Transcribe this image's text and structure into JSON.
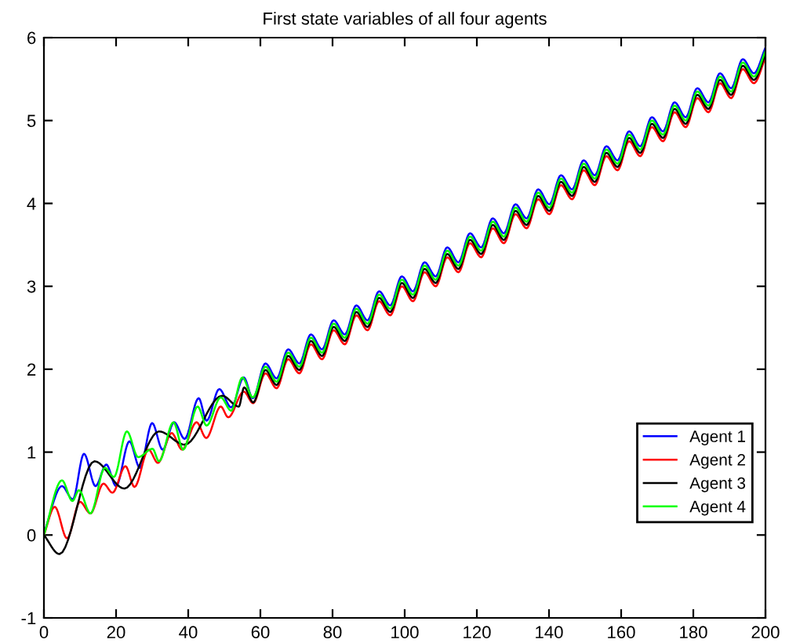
{
  "chart_data": {
    "type": "line",
    "title": "First state variables of all four agents",
    "xlim": [
      0,
      200
    ],
    "ylim": [
      -1,
      6
    ],
    "xticks": [
      0,
      20,
      40,
      60,
      80,
      100,
      120,
      140,
      160,
      180,
      200
    ],
    "yticks": [
      -1,
      0,
      1,
      2,
      3,
      4,
      5,
      6
    ],
    "grid": false,
    "legend": "right",
    "marker": "none",
    "line_style": "solid",
    "series": [
      {
        "name": "Agent 1",
        "color": "#0000ff",
        "x": [
          0,
          5,
          8,
          11.1,
          14.3,
          17.3,
          20,
          23.7,
          26.6,
          30,
          32.9,
          36.1,
          39,
          42.9,
          45.1,
          48.6,
          51.9,
          55.4,
          57.9,
          61.4,
          64.5,
          67.7,
          70.8,
          74.0,
          77.1,
          80.3,
          83.4,
          86.6,
          89.7,
          92.9,
          96.0,
          99.2,
          102.3,
          105.5,
          108.6,
          111.8,
          114.9,
          118.1,
          121.2,
          124.4,
          127.5,
          130.7,
          133.8,
          137.0,
          140.1,
          143.3,
          146.4,
          149.6,
          152.7,
          155.9,
          159.0,
          162.2,
          165.3,
          168.5,
          171.6,
          174.8,
          177.9,
          181.1,
          184.2,
          187.4,
          190.5,
          193.7,
          196.8,
          200.0
        ],
        "values": [
          0.02,
          0.59,
          0.43,
          0.98,
          0.59,
          0.85,
          0.59,
          1.13,
          0.81,
          1.35,
          1.03,
          1.36,
          1.16,
          1.65,
          1.38,
          1.76,
          1.54,
          1.9,
          1.65,
          2.07,
          1.89,
          2.24,
          2.07,
          2.42,
          2.24,
          2.59,
          2.42,
          2.77,
          2.59,
          2.94,
          2.77,
          3.12,
          2.94,
          3.29,
          3.12,
          3.47,
          3.29,
          3.64,
          3.47,
          3.82,
          3.64,
          3.99,
          3.82,
          4.17,
          3.99,
          4.34,
          4.17,
          4.52,
          4.34,
          4.69,
          4.52,
          4.87,
          4.69,
          5.04,
          4.87,
          5.22,
          5.04,
          5.39,
          5.22,
          5.57,
          5.39,
          5.74,
          5.57,
          5.88
        ]
      },
      {
        "name": "Agent 2",
        "color": "#ff0000",
        "x": [
          0,
          3,
          6.4,
          10,
          12.9,
          16.5,
          19,
          22.6,
          25.1,
          29,
          31.6,
          35.4,
          38.3,
          42.3,
          45,
          49,
          51.1,
          55.4,
          58,
          61.4,
          64.5,
          67.7,
          70.8,
          74.0,
          77.1,
          80.3,
          83.4,
          86.6,
          89.7,
          92.9,
          96.0,
          99.2,
          102.3,
          105.5,
          108.6,
          111.8,
          114.9,
          118.1,
          121.2,
          124.4,
          127.5,
          130.7,
          133.8,
          137.0,
          140.1,
          143.3,
          146.4,
          149.6,
          152.7,
          155.9,
          159.0,
          162.2,
          165.3,
          168.5,
          171.6,
          174.8,
          177.9,
          181.1,
          184.2,
          187.4,
          190.5,
          193.7,
          196.8,
          200.0
        ],
        "values": [
          0,
          0.34,
          -0.04,
          0.4,
          0.26,
          0.62,
          0.51,
          0.83,
          0.58,
          1.03,
          0.87,
          1.23,
          1.03,
          1.36,
          1.17,
          1.55,
          1.42,
          1.73,
          1.59,
          1.95,
          1.77,
          2.12,
          1.95,
          2.3,
          2.12,
          2.47,
          2.3,
          2.65,
          2.47,
          2.82,
          2.65,
          3.0,
          2.82,
          3.17,
          3.0,
          3.35,
          3.17,
          3.52,
          3.35,
          3.7,
          3.52,
          3.87,
          3.7,
          4.05,
          3.87,
          4.22,
          4.05,
          4.4,
          4.22,
          4.57,
          4.4,
          4.75,
          4.57,
          4.92,
          4.75,
          5.1,
          4.92,
          5.27,
          5.1,
          5.45,
          5.27,
          5.62,
          5.45,
          5.76
        ]
      },
      {
        "name": "Agent 3",
        "color": "#000000",
        "x": [
          0,
          4.3,
          14,
          22.3,
          31.9,
          39,
          49.4,
          54,
          55.5,
          58,
          61.4,
          64.5,
          67.7,
          70.8,
          74.0,
          77.1,
          80.3,
          83.4,
          86.6,
          89.7,
          92.9,
          96.0,
          99.2,
          102.3,
          105.5,
          108.6,
          111.8,
          114.9,
          118.1,
          121.2,
          124.4,
          127.5,
          130.7,
          133.8,
          137.0,
          140.1,
          143.3,
          146.4,
          149.6,
          152.7,
          155.9,
          159.0,
          162.2,
          165.3,
          168.5,
          171.6,
          174.8,
          177.9,
          181.1,
          184.2,
          187.4,
          190.5,
          193.7,
          196.8,
          200.0
        ],
        "values": [
          0,
          -0.23,
          0.89,
          0.56,
          1.25,
          1.09,
          1.68,
          1.55,
          1.78,
          1.6,
          1.99,
          1.81,
          2.16,
          1.99,
          2.34,
          2.16,
          2.51,
          2.34,
          2.69,
          2.51,
          2.86,
          2.69,
          3.04,
          2.86,
          3.21,
          3.04,
          3.39,
          3.21,
          3.56,
          3.39,
          3.74,
          3.56,
          3.91,
          3.74,
          4.09,
          3.91,
          4.26,
          4.09,
          4.44,
          4.26,
          4.61,
          4.44,
          4.79,
          4.61,
          4.96,
          4.79,
          5.14,
          4.96,
          5.31,
          5.14,
          5.49,
          5.31,
          5.66,
          5.49,
          5.8
        ]
      },
      {
        "name": "Agent 4",
        "color": "#00ff00",
        "x": [
          0,
          5,
          7.9,
          9.7,
          12.9,
          16.9,
          19.4,
          23,
          26.1,
          30.1,
          31.9,
          35.9,
          38.6,
          42.6,
          45.1,
          49,
          51.9,
          55,
          57.9,
          61.4,
          64.5,
          67.7,
          70.8,
          74.0,
          77.1,
          80.3,
          83.4,
          86.6,
          89.7,
          92.9,
          96.0,
          99.2,
          102.3,
          105.5,
          108.6,
          111.8,
          114.9,
          118.1,
          121.2,
          124.4,
          127.5,
          130.7,
          133.8,
          137.0,
          140.1,
          143.3,
          146.4,
          149.6,
          152.7,
          155.9,
          159.0,
          162.2,
          165.3,
          168.5,
          171.6,
          174.8,
          177.9,
          181.1,
          184.2,
          187.4,
          190.5,
          193.7,
          196.8,
          200.0
        ],
        "values": [
          0,
          0.66,
          0.41,
          0.54,
          0.26,
          0.81,
          0.7,
          1.25,
          0.94,
          1.04,
          0.89,
          1.36,
          1.03,
          1.55,
          1.32,
          1.66,
          1.5,
          1.9,
          1.66,
          2.03,
          1.85,
          2.2,
          2.03,
          2.38,
          2.2,
          2.55,
          2.38,
          2.73,
          2.55,
          2.9,
          2.73,
          3.08,
          2.9,
          3.25,
          3.08,
          3.43,
          3.25,
          3.6,
          3.43,
          3.78,
          3.6,
          3.95,
          3.78,
          4.13,
          3.95,
          4.3,
          4.13,
          4.48,
          4.3,
          4.65,
          4.48,
          4.83,
          4.65,
          5.0,
          4.83,
          5.18,
          5.0,
          5.35,
          5.18,
          5.53,
          5.35,
          5.7,
          5.53,
          5.84
        ]
      }
    ]
  }
}
